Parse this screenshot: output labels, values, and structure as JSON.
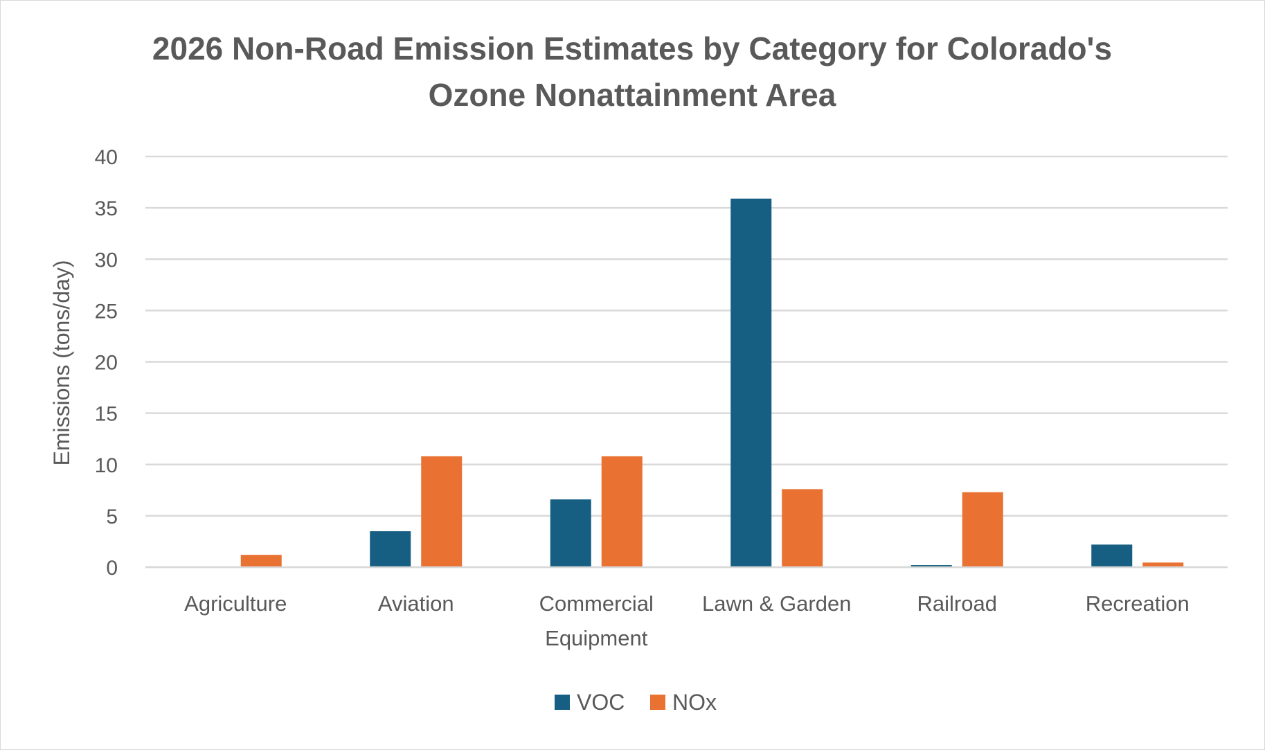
{
  "chart_data": {
    "type": "bar",
    "title": [
      "2026 Non-Road Emission Estimates by Category for Colorado's",
      "Ozone Nonattainment Area"
    ],
    "xlabel": "",
    "ylabel": "Emissions (tons/day)",
    "ylim": [
      0,
      40
    ],
    "yticks": [
      "0",
      "5",
      "10",
      "15",
      "20",
      "25",
      "30",
      "35",
      "40"
    ],
    "grid": true,
    "legend_position": "bottom",
    "categories": [
      [
        "Agriculture"
      ],
      [
        "Aviation"
      ],
      [
        "Commercial",
        "Equipment"
      ],
      [
        "Lawn & Garden"
      ],
      [
        "Railroad"
      ],
      [
        "Recreation"
      ]
    ],
    "series": [
      {
        "name": "VOC",
        "color": "#175f82",
        "values": [
          0,
          3.5,
          6.6,
          35.9,
          0.2,
          2.2
        ]
      },
      {
        "name": "NOx",
        "color": "#e97132",
        "values": [
          1.2,
          10.8,
          10.8,
          7.6,
          7.3,
          0.45
        ]
      }
    ]
  }
}
